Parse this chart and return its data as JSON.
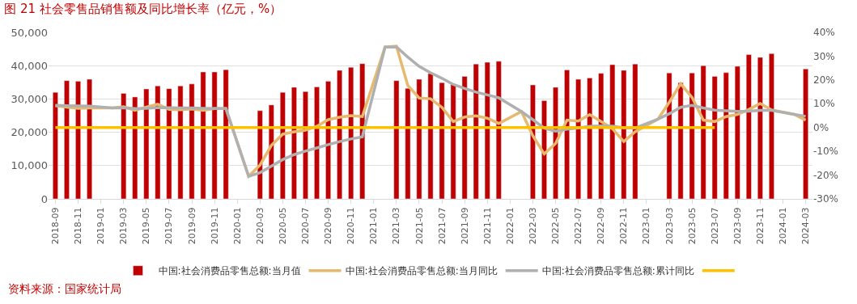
{
  "chart_data": {
    "type": "bar",
    "title": "图 21 社会零售品销售额及同比增长率（亿元，%）",
    "annotations": [
      "资料来源：国家统计局"
    ],
    "categories": [
      "2018-09",
      null,
      "2018-11",
      null,
      "2019-01",
      null,
      "2019-03",
      null,
      "2019-05",
      null,
      "2019-07",
      null,
      "2019-09",
      null,
      "2019-11",
      null,
      "2020-01",
      null,
      "2020-03",
      null,
      "2020-05",
      null,
      "2020-07",
      null,
      "2020-09",
      null,
      "2020-11",
      null,
      "2021-01",
      null,
      "2021-03",
      null,
      "2021-05",
      null,
      "2021-07",
      null,
      "2021-09",
      null,
      "2021-11",
      null,
      "2022-01",
      null,
      "2022-03",
      null,
      "2022-05",
      null,
      "2022-07",
      null,
      "2022-09",
      null,
      "2022-11",
      null,
      "2023-01",
      null,
      "2023-03",
      null,
      "2023-05",
      null,
      "2023-07",
      null,
      "2023-09",
      null,
      "2023-11",
      null,
      "2024-01",
      null,
      "2024-03"
    ],
    "series": [
      {
        "name": "中国:社会消费品零售总额:当月值",
        "color": "#c00000",
        "values": [
          32000,
          35500,
          35300,
          35900,
          null,
          null,
          31700,
          30600,
          33000,
          33900,
          33100,
          33900,
          34500,
          38100,
          38100,
          38800,
          null,
          null,
          26500,
          28200,
          32000,
          33500,
          32200,
          33600,
          35300,
          38600,
          39500,
          40600,
          null,
          null,
          35500,
          33200,
          35900,
          37600,
          34900,
          34400,
          36800,
          40500,
          41000,
          41300,
          null,
          null,
          34200,
          29500,
          33500,
          38700,
          35900,
          36300,
          37700,
          40300,
          38600,
          40500,
          null,
          null,
          37800,
          34900,
          37800,
          40000,
          36800,
          37900,
          39800,
          43300,
          42500,
          43600,
          null,
          null,
          39000
        ]
      },
      {
        "name": "中国:社会消费品零售总额:当月同比",
        "type": "line",
        "axis": "y2",
        "color": "#e6b96e",
        "values": [
          9.2,
          8.6,
          8.1,
          8.2,
          null,
          8.2,
          8.7,
          7.2,
          8.6,
          9.8,
          7.6,
          7.5,
          7.8,
          7.2,
          8.0,
          8.0,
          null,
          -20.5,
          -15.8,
          -7.5,
          -2.8,
          -1.8,
          -1.1,
          0.5,
          3.3,
          4.3,
          5.0,
          4.6,
          null,
          33.8,
          34.2,
          17.7,
          12.4,
          12.1,
          8.5,
          2.5,
          4.4,
          4.9,
          3.9,
          1.7,
          null,
          6.7,
          -3.5,
          -11.1,
          -6.7,
          3.1,
          2.7,
          5.4,
          2.5,
          -0.5,
          -5.9,
          -1.8,
          null,
          3.5,
          10.6,
          18.4,
          12.7,
          3.1,
          2.5,
          4.6,
          5.5,
          7.6,
          10.1,
          7.4,
          null,
          5.5,
          3.1
        ]
      },
      {
        "name": "中国:社会消费品零售总额:累计同比",
        "type": "line",
        "axis": "y2",
        "color": "#b0b0b0",
        "values": [
          9.3,
          9.2,
          9.1,
          9.0,
          null,
          8.2,
          8.3,
          8.0,
          8.1,
          8.4,
          8.3,
          8.2,
          8.2,
          8.1,
          8.0,
          8.0,
          null,
          -20.5,
          -19.0,
          -16.2,
          -13.5,
          -11.4,
          -9.9,
          -8.6,
          -7.2,
          -5.9,
          -4.8,
          -3.9,
          null,
          33.8,
          33.9,
          29.6,
          25.7,
          23.0,
          20.7,
          18.1,
          16.4,
          14.9,
          13.7,
          12.5,
          null,
          6.7,
          3.3,
          -0.2,
          -1.5,
          -0.7,
          -0.2,
          0.5,
          0.7,
          0.6,
          -0.1,
          -0.2,
          null,
          3.5,
          5.8,
          8.5,
          9.3,
          8.2,
          7.3,
          7.0,
          6.8,
          6.9,
          7.2,
          7.2,
          null,
          5.5,
          4.7
        ]
      },
      {
        "type": "line",
        "axis": "y2",
        "color": "#ffc000",
        "values": [
          0,
          0,
          0,
          0,
          0,
          0,
          0,
          0,
          0,
          0,
          0,
          0,
          0,
          0,
          0,
          0,
          0,
          0,
          0,
          0,
          0,
          0,
          0,
          0,
          0,
          0,
          0,
          0,
          0,
          0,
          0,
          0,
          0,
          0,
          0,
          0,
          0,
          0,
          0,
          0,
          0,
          0,
          0,
          0,
          0,
          0,
          0,
          0,
          0,
          0,
          0,
          0,
          0,
          0,
          0,
          0,
          0,
          0,
          0,
          null,
          null,
          null,
          null,
          null,
          null,
          null,
          null
        ]
      }
    ],
    "ylim": [
      0,
      50000
    ],
    "yticks": [
      0,
      {
        "value": 10000,
        "label": "10,000"
      },
      {
        "value": 20000,
        "label": "20,000"
      },
      {
        "value": 30000,
        "label": "30,000"
      },
      {
        "value": 40000,
        "label": "40,000"
      },
      {
        "value": 50000,
        "label": "50,000"
      }
    ],
    "y2lim": [
      -30,
      40
    ],
    "y2ticks": [
      {
        "value": -30,
        "label": "-30%"
      },
      {
        "value": -20,
        "label": "-20%"
      },
      {
        "value": -10,
        "label": "-10%"
      },
      {
        "value": 0,
        "label": "0%"
      },
      {
        "value": 10,
        "label": "10%"
      },
      {
        "value": 20,
        "label": "20%"
      },
      {
        "value": 30,
        "label": "30%"
      },
      {
        "value": 40,
        "label": "40%"
      }
    ],
    "grid": "y",
    "legend": "bottom"
  }
}
